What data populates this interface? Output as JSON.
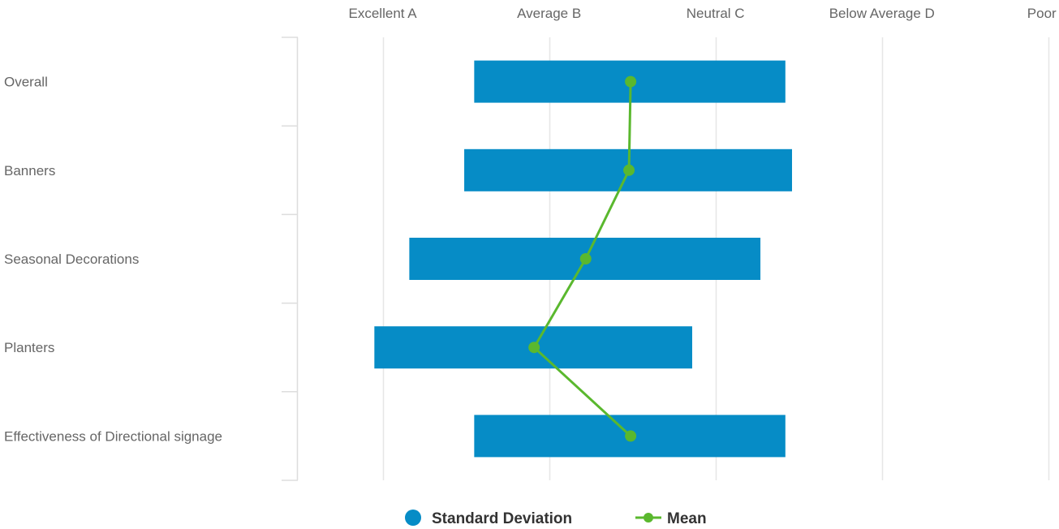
{
  "chart_data": {
    "type": "bar",
    "categories": [
      "Overall",
      "Banners",
      "Seasonal Decorations",
      "Planters",
      "Effectiveness of Directional signage"
    ],
    "x_ticks": [
      {
        "value": 1,
        "label": "Excellent A"
      },
      {
        "value": 2,
        "label": "Average B"
      },
      {
        "value": 3,
        "label": "Neutral C"
      },
      {
        "value": 4,
        "label": "Below Average D"
      },
      {
        "value": 5,
        "label": "Poor E"
      }
    ],
    "xlim": [
      0.49,
      5.04
    ],
    "series": [
      {
        "name": "Standard Deviation",
        "kind": "floating-bar",
        "color": "#068CC6",
        "ranges": [
          [
            1.55,
            3.42
          ],
          [
            1.49,
            3.46
          ],
          [
            1.16,
            3.27
          ],
          [
            0.95,
            2.86
          ],
          [
            1.55,
            3.42
          ]
        ]
      },
      {
        "name": "Mean",
        "kind": "line",
        "color": "#5AB82E",
        "values": [
          2.49,
          2.48,
          2.22,
          1.91,
          2.49
        ]
      }
    ],
    "grid": true,
    "legend_position": "bottom-center"
  }
}
